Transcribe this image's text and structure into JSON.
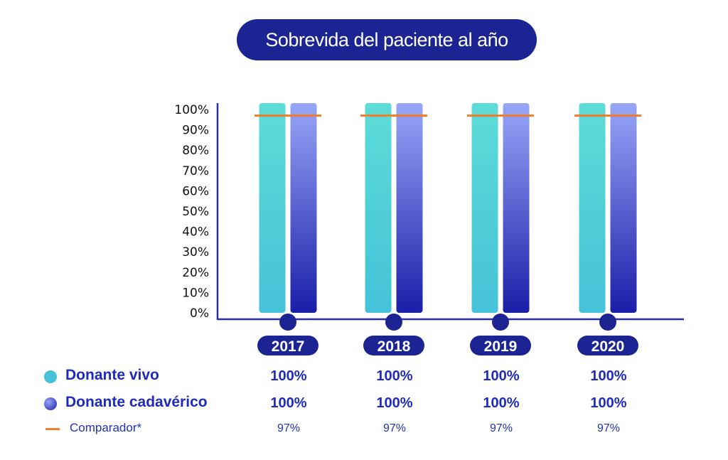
{
  "title": "Sobrevida del paciente al año",
  "colors": {
    "title_bg": "#1c2494",
    "vivo_top": "#5ddcd8",
    "vivo_bottom": "#45c2d8",
    "cadaverico_top": "#98a6f8",
    "cadaverico_bottom": "#1a1ea8",
    "comparador": "#f07d2a",
    "axis": "#2a2fa0",
    "year_pill": "#1c2494"
  },
  "chart_data": {
    "type": "bar",
    "categories": [
      "2017",
      "2018",
      "2019",
      "2020"
    ],
    "series": [
      {
        "name": "Donante vivo",
        "values": [
          100,
          100,
          100,
          100
        ]
      },
      {
        "name": "Donante cadavérico",
        "values": [
          100,
          100,
          100,
          100
        ]
      }
    ],
    "comparator": {
      "name": "Comparador*",
      "values": [
        97,
        97,
        97,
        97
      ]
    },
    "yticks": [
      "0%",
      "10%",
      "20%",
      "30%",
      "40%",
      "50%",
      "60%",
      "70%",
      "80%",
      "90%",
      "100%"
    ],
    "ylim": [
      0,
      100
    ],
    "legend_position": "bottom-left"
  },
  "table": {
    "rows": [
      {
        "label": "Donante vivo",
        "values": [
          "100%",
          "100%",
          "100%",
          "100%"
        ]
      },
      {
        "label": "Donante cadavérico",
        "values": [
          "100%",
          "100%",
          "100%",
          "100%"
        ]
      },
      {
        "label": "Comparador*",
        "values": [
          "97%",
          "97%",
          "97%",
          "97%"
        ]
      }
    ]
  }
}
